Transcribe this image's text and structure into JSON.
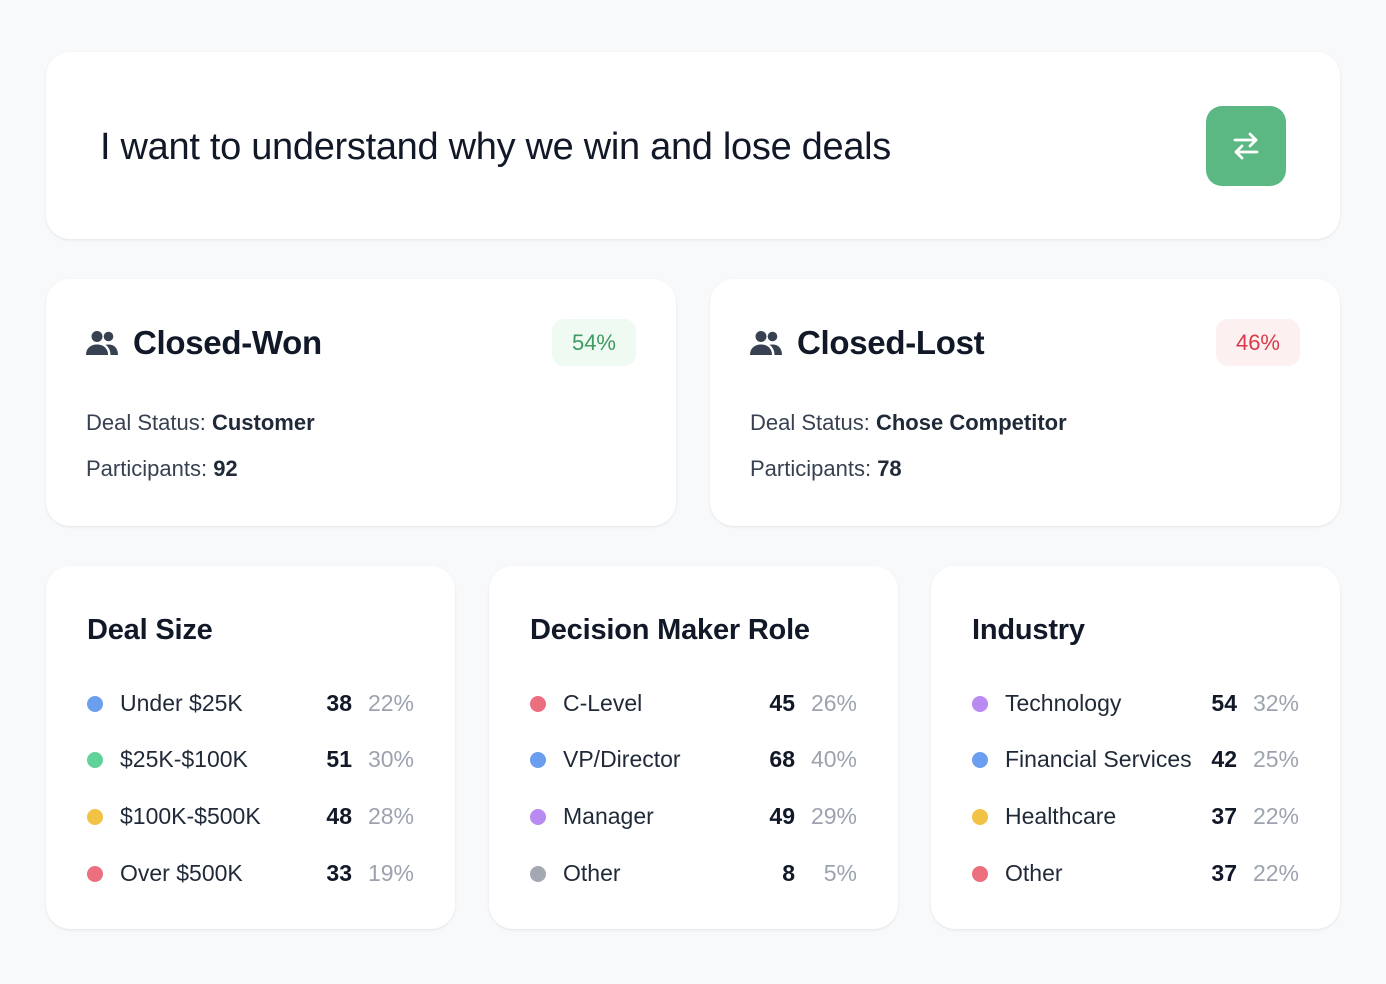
{
  "prompt": {
    "text": "I want to understand why we win and lose deals",
    "button_icon": "swap-arrows-icon",
    "button_color": "#5bb883"
  },
  "segments": [
    {
      "title": "Closed-Won",
      "icon": "users-icon",
      "percent": "54%",
      "badge_bg": "#eefaf2",
      "badge_color": "#3f9a63",
      "status_label": "Deal Status:",
      "status_value": "Customer",
      "participants_label": "Participants:",
      "participants_value": "92"
    },
    {
      "title": "Closed-Lost",
      "icon": "users-icon",
      "percent": "46%",
      "badge_bg": "#fdf0f1",
      "badge_color": "#d9394a",
      "status_label": "Deal Status:",
      "status_value": "Chose Competitor",
      "participants_label": "Participants:",
      "participants_value": "78"
    }
  ],
  "breakdowns": [
    {
      "title": "Deal Size",
      "rows": [
        {
          "label": "Under $25K",
          "count": "38",
          "pct": "22%",
          "color": "#6c9ef0"
        },
        {
          "label": "$25K-$100K",
          "count": "51",
          "pct": "30%",
          "color": "#5fd39a"
        },
        {
          "label": "$100K-$500K",
          "count": "48",
          "pct": "28%",
          "color": "#f2c244"
        },
        {
          "label": "Over $500K",
          "count": "33",
          "pct": "19%",
          "color": "#ec6f80"
        }
      ]
    },
    {
      "title": "Decision Maker Role",
      "rows": [
        {
          "label": "C-Level",
          "count": "45",
          "pct": "26%",
          "color": "#ec6f80"
        },
        {
          "label": "VP/Director",
          "count": "68",
          "pct": "40%",
          "color": "#6c9ef0"
        },
        {
          "label": "Manager",
          "count": "49",
          "pct": "29%",
          "color": "#b88af2"
        },
        {
          "label": "Other",
          "count": "8",
          "pct": "5%",
          "color": "#a3a8b3"
        }
      ]
    },
    {
      "title": "Industry",
      "rows": [
        {
          "label": "Technology",
          "count": "54",
          "pct": "32%",
          "color": "#b88af2"
        },
        {
          "label": "Financial Services",
          "count": "42",
          "pct": "25%",
          "color": "#6c9ef0"
        },
        {
          "label": "Healthcare",
          "count": "37",
          "pct": "22%",
          "color": "#f2c244"
        },
        {
          "label": "Other",
          "count": "37",
          "pct": "22%",
          "color": "#ec6f80"
        }
      ]
    }
  ]
}
